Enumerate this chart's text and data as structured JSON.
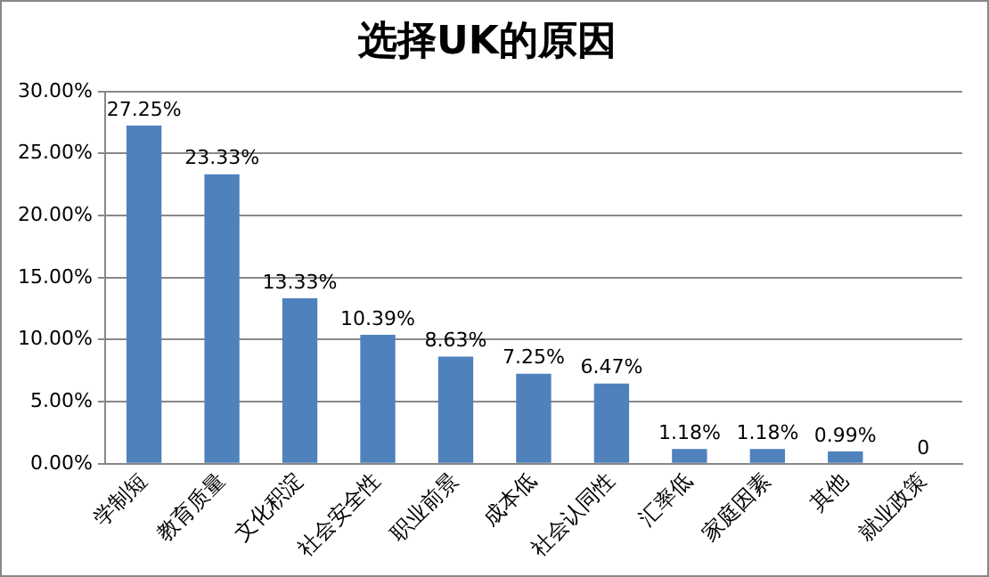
{
  "chart_data": {
    "type": "bar",
    "title": "选择UK的原因",
    "categories": [
      "学制短",
      "教育质量",
      "文化积淀",
      "社会安全性",
      "职业前景",
      "成本低",
      "社会认同性",
      "汇率低",
      "家庭因素",
      "其他",
      "就业政策"
    ],
    "values": [
      27.25,
      23.33,
      13.33,
      10.39,
      8.63,
      7.25,
      6.47,
      1.18,
      1.18,
      0.99,
      0
    ],
    "value_labels": [
      "27.25%",
      "23.33%",
      "13.33%",
      "10.39%",
      "8.63%",
      "7.25%",
      "6.47%",
      "1.18%",
      "1.18%",
      "0.99%",
      "0"
    ],
    "color": "#4f81bd",
    "ylim": [
      0,
      30
    ],
    "yticks": [
      {
        "value": 0,
        "label": "0.00%"
      },
      {
        "value": 5,
        "label": "5.00%"
      },
      {
        "value": 10,
        "label": "10.00%"
      },
      {
        "value": 15,
        "label": "15.00%"
      },
      {
        "value": 20,
        "label": "20.00%"
      },
      {
        "value": 25,
        "label": "25.00%"
      },
      {
        "value": 30,
        "label": "30.00%"
      }
    ],
    "grid": "y",
    "legend": false
  }
}
